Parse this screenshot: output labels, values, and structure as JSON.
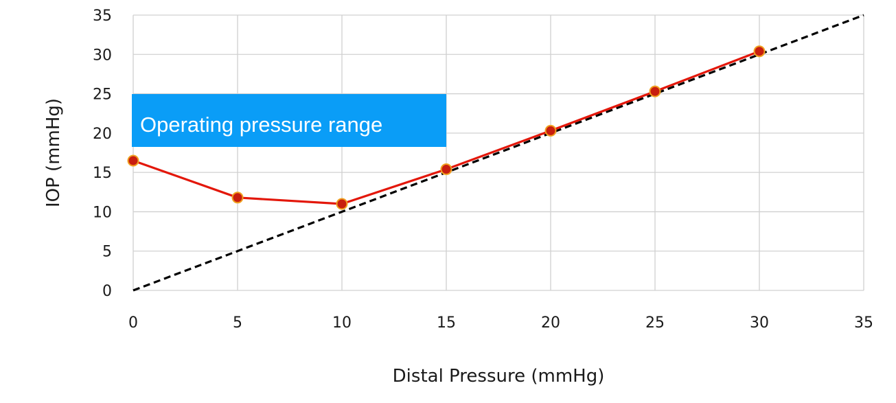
{
  "chart_data": {
    "type": "line",
    "xlabel": "Distal Pressure (mmHg)",
    "ylabel": "IOP (mmHg)",
    "xlim": [
      0,
      35
    ],
    "ylim": [
      0,
      35
    ],
    "x_ticks": [
      0,
      5,
      10,
      15,
      20,
      25,
      30,
      35
    ],
    "y_ticks": [
      0,
      5,
      10,
      15,
      20,
      25,
      30,
      35
    ],
    "grid": true,
    "legend": "none",
    "series": [
      {
        "style": "solid-with-markers",
        "color": "#e3170a",
        "marker_color": "#c81e0f",
        "x": [
          0,
          5,
          10,
          15,
          20,
          25,
          30
        ],
        "y": [
          16.5,
          11.8,
          11.0,
          15.4,
          20.3,
          25.3,
          30.4
        ]
      },
      {
        "style": "dashed",
        "color": "#000000",
        "x": [
          0,
          35
        ],
        "y": [
          0,
          35
        ]
      }
    ],
    "annotations": [
      {
        "text": "Operating pressure range",
        "background": "#0a9df7",
        "text_color": "#ffffff"
      }
    ]
  }
}
